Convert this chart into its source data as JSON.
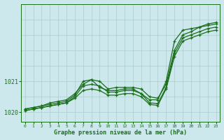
{
  "title": "Graphe pression niveau de la mer (hPa)",
  "bg_color": "#cce8ec",
  "grid_color": "#aacccc",
  "line_color": "#1a6e1a",
  "ylim": [
    1019.7,
    1023.5
  ],
  "yticks": [
    1020,
    1021
  ],
  "xlim": [
    -0.5,
    23.5
  ],
  "series": [
    [
      1020.1,
      1020.15,
      1020.2,
      1020.25,
      1020.3,
      1020.35,
      1020.55,
      1021.0,
      1021.05,
      1021.0,
      1020.75,
      1020.8,
      1020.8,
      1020.8,
      1020.75,
      1020.5,
      1020.45,
      1020.9,
      1022.0,
      1022.5,
      1022.6,
      1022.75,
      1022.85,
      1022.9
    ],
    [
      1020.1,
      1020.15,
      1020.2,
      1020.3,
      1020.35,
      1020.4,
      1020.6,
      1020.9,
      1021.05,
      1020.8,
      1020.7,
      1020.7,
      1020.75,
      1020.75,
      1020.6,
      1020.4,
      1020.4,
      1021.0,
      1022.3,
      1022.65,
      1022.7,
      1022.75,
      1022.8,
      1022.85
    ],
    [
      1020.05,
      1020.1,
      1020.15,
      1020.2,
      1020.25,
      1020.3,
      1020.5,
      1020.85,
      1020.9,
      1020.85,
      1020.65,
      1020.65,
      1020.7,
      1020.7,
      1020.6,
      1020.3,
      1020.28,
      1020.8,
      1021.9,
      1022.4,
      1022.5,
      1022.6,
      1022.7,
      1022.75
    ],
    [
      1020.05,
      1020.1,
      1020.15,
      1020.2,
      1020.25,
      1020.3,
      1020.45,
      1020.7,
      1020.75,
      1020.7,
      1020.55,
      1020.55,
      1020.6,
      1020.6,
      1020.5,
      1020.25,
      1020.22,
      1020.75,
      1021.8,
      1022.3,
      1022.4,
      1022.5,
      1022.6,
      1022.65
    ]
  ],
  "hours": [
    0,
    1,
    2,
    3,
    4,
    5,
    6,
    7,
    8,
    9,
    10,
    11,
    12,
    13,
    14,
    15,
    16,
    17,
    18,
    19,
    20,
    21,
    22,
    23
  ],
  "figsize": [
    3.2,
    2.0
  ],
  "dpi": 100
}
